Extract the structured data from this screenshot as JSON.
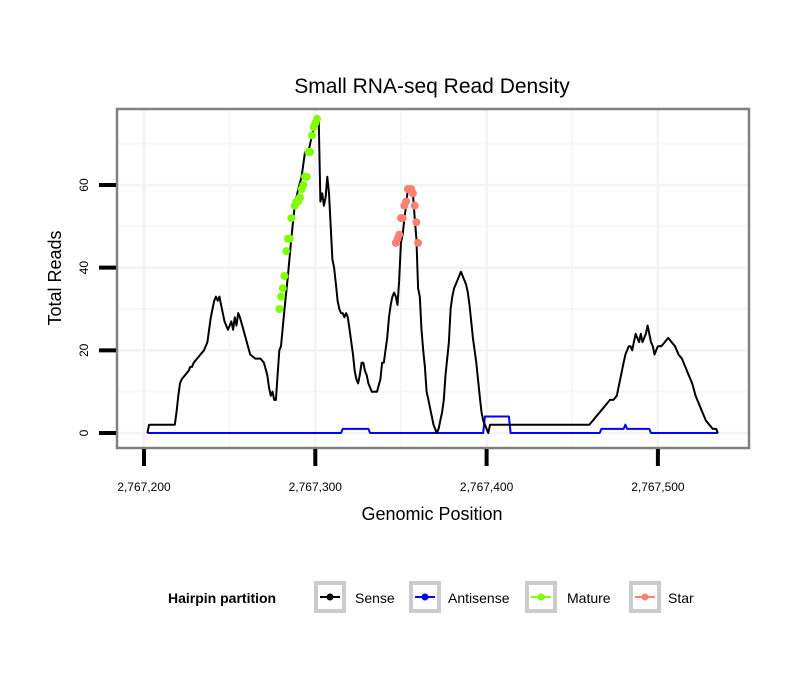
{
  "chart_data": {
    "type": "line",
    "title": "Small RNA-seq Read Density",
    "xlabel": "Genomic Position",
    "ylabel": "Total Reads",
    "xlim": [
      2767198,
      2767538
    ],
    "ylim": [
      -3,
      78
    ],
    "x_ticks": [
      {
        "value": 2767200,
        "label": "2,767,200"
      },
      {
        "value": 2767300,
        "label": "2,767,300"
      },
      {
        "value": 2767400,
        "label": "2,767,400"
      },
      {
        "value": 2767500,
        "label": "2,767,500"
      }
    ],
    "y_ticks": [
      {
        "value": 0,
        "label": "0"
      },
      {
        "value": 20,
        "label": "20"
      },
      {
        "value": 40,
        "label": "40"
      },
      {
        "value": 60,
        "label": "60"
      }
    ],
    "grid": true,
    "legend": {
      "title": "Hairpin partition",
      "position": "bottom",
      "entries": [
        {
          "name": "Sense",
          "color": "#000000"
        },
        {
          "name": "Antisense",
          "color": "#0000ff"
        },
        {
          "name": "Mature",
          "color": "#7fff00"
        },
        {
          "name": "Star",
          "color": "#fa8072"
        }
      ]
    },
    "series": [
      {
        "name": "Sense",
        "color": "#000000",
        "style": "line",
        "x": [
          2767202,
          2767203,
          2767218,
          2767219,
          2767220,
          2767221,
          2767222,
          2767224,
          2767226,
          2767227,
          2767228,
          2767229,
          2767231,
          2767233,
          2767235,
          2767236,
          2767237,
          2767238,
          2767239,
          2767240,
          2767241,
          2767242,
          2767243,
          2767244,
          2767245,
          2767246,
          2767247,
          2767248,
          2767249,
          2767250,
          2767251,
          2767252,
          2767253,
          2767254,
          2767255,
          2767256,
          2767258,
          2767260,
          2767262,
          2767265,
          2767268,
          2767270,
          2767272,
          2767273,
          2767274,
          2767275,
          2767276,
          2767277,
          2767278,
          2767279,
          2767280,
          2767282,
          2767284,
          2767286,
          2767288,
          2767290,
          2767292,
          2767294,
          2767296,
          2767298,
          2767300,
          2767301,
          2767302,
          2767303,
          2767304,
          2767305,
          2767306,
          2767307,
          2767308,
          2767309,
          2767310,
          2767311,
          2767312,
          2767313,
          2767314,
          2767315,
          2767316,
          2767317,
          2767318,
          2767319,
          2767320,
          2767321,
          2767322,
          2767323,
          2767324,
          2767325,
          2767326,
          2767327,
          2767328,
          2767329,
          2767330,
          2767331,
          2767332,
          2767333,
          2767334,
          2767336,
          2767338,
          2767339,
          2767340,
          2767341,
          2767342,
          2767343,
          2767344,
          2767345,
          2767346,
          2767347,
          2767348,
          2767349,
          2767350,
          2767351,
          2767352,
          2767353,
          2767354,
          2767355,
          2767356,
          2767357,
          2767358,
          2767359,
          2767360,
          2767361,
          2767362,
          2767363,
          2767364,
          2767365,
          2767366,
          2767367,
          2767368,
          2767369,
          2767370,
          2767371,
          2767372,
          2767373,
          2767374,
          2767375,
          2767376,
          2767377,
          2767378,
          2767379,
          2767380,
          2767381,
          2767382,
          2767383,
          2767384,
          2767385,
          2767386,
          2767387,
          2767388,
          2767389,
          2767390,
          2767391,
          2767392,
          2767393,
          2767394,
          2767395,
          2767396,
          2767397,
          2767398,
          2767399,
          2767400,
          2767401,
          2767402,
          2767403,
          2767404,
          2767405,
          2767406,
          2767407,
          2767408,
          2767409,
          2767410,
          2767411,
          2767412,
          2767413,
          2767414,
          2767415,
          2767416,
          2767417,
          2767418,
          2767419,
          2767420,
          2767421,
          2767422,
          2767423,
          2767424,
          2767425,
          2767426,
          2767427,
          2767428,
          2767429,
          2767430,
          2767431,
          2767432,
          2767433,
          2767434,
          2767435,
          2767436,
          2767437,
          2767438,
          2767439,
          2767440,
          2767452,
          2767454,
          2767456,
          2767458,
          2767460,
          2767462,
          2767464,
          2767466,
          2767468,
          2767470,
          2767472,
          2767474,
          2767476,
          2767477,
          2767478,
          2767479,
          2767480,
          2767481,
          2767482,
          2767483,
          2767484,
          2767485,
          2767486,
          2767487,
          2767488,
          2767489,
          2767490,
          2767491,
          2767492,
          2767493,
          2767494,
          2767495,
          2767496,
          2767497,
          2767498,
          2767499,
          2767500,
          2767502,
          2767504,
          2767506,
          2767508,
          2767510,
          2767512,
          2767514,
          2767516,
          2767518,
          2767520,
          2767522,
          2767524,
          2767526,
          2767528,
          2767530,
          2767532,
          2767534,
          2767535
        ],
        "y": [
          0,
          2,
          2,
          5,
          9,
          12,
          13,
          14,
          15,
          16,
          16,
          17,
          18,
          19,
          20,
          21,
          22,
          25,
          28,
          30,
          32,
          33,
          32,
          33,
          31,
          29,
          27,
          26,
          25,
          26,
          27,
          25,
          28,
          26,
          29,
          28,
          25,
          22,
          19,
          18,
          18,
          17,
          14,
          11,
          9,
          10,
          8,
          8,
          14,
          20,
          21,
          30,
          38,
          47,
          55,
          59,
          62,
          68,
          68,
          72,
          75,
          76,
          76,
          56,
          58,
          55,
          57,
          62,
          58,
          50,
          42,
          40,
          36,
          32,
          30,
          29,
          29,
          28,
          29,
          28,
          25,
          22,
          19,
          15,
          13,
          12,
          14,
          17,
          17,
          15,
          14,
          12,
          11,
          10,
          10,
          10,
          13,
          17,
          17,
          20,
          23,
          28,
          31,
          33,
          34,
          33,
          31,
          37,
          46,
          48,
          52,
          55,
          59,
          59,
          59,
          58,
          52,
          47,
          35,
          33,
          25,
          20,
          16,
          10,
          8,
          6,
          4,
          2,
          1,
          0,
          1,
          3,
          5,
          8,
          14,
          18,
          22,
          30,
          33,
          35,
          36,
          37,
          38,
          39,
          38,
          37,
          36,
          34,
          31,
          27,
          23,
          20,
          17,
          13,
          9,
          5,
          3,
          2,
          1,
          0,
          2,
          2,
          2,
          2,
          2,
          2,
          2,
          2,
          2,
          2,
          2,
          2,
          2,
          2,
          2,
          2,
          2,
          2,
          2,
          2,
          2,
          2,
          2,
          2,
          2,
          2,
          2,
          2,
          2,
          2,
          2,
          2,
          2,
          2,
          2,
          2,
          2,
          2,
          2,
          2,
          2,
          2,
          2,
          2,
          3,
          4,
          5,
          6,
          7,
          8,
          8,
          9,
          11,
          13,
          15,
          17,
          19,
          20,
          21,
          21,
          20,
          22,
          24,
          23,
          22,
          24,
          22,
          23,
          24,
          26,
          24,
          22,
          21,
          19,
          20,
          21,
          21,
          22,
          23,
          22,
          21,
          19,
          18,
          16,
          14,
          12,
          9,
          7,
          5,
          3,
          2,
          1,
          1,
          0
        ]
      },
      {
        "name": "Antisense",
        "color": "#0000ff",
        "style": "line",
        "x": [
          2767202,
          2767315,
          2767316,
          2767331,
          2767332,
          2767398,
          2767399,
          2767413,
          2767414,
          2767466,
          2767467,
          2767480,
          2767481,
          2767482,
          2767495,
          2767496,
          2767535
        ],
        "y": [
          0,
          0,
          1,
          1,
          0,
          0,
          4,
          4,
          0,
          0,
          1,
          1,
          2,
          1,
          1,
          0,
          0
        ]
      },
      {
        "name": "Mature",
        "color": "#7fff00",
        "style": "points",
        "x": [
          2767279,
          2767280,
          2767281,
          2767282,
          2767283,
          2767284,
          2767285,
          2767286,
          2767288,
          2767289,
          2767290,
          2767291,
          2767292,
          2767293,
          2767294,
          2767295,
          2767296,
          2767297,
          2767298,
          2767299,
          2767300,
          2767301
        ],
        "y": [
          30,
          33,
          35,
          38,
          44,
          47,
          47,
          52,
          55,
          56,
          56,
          57,
          59,
          60,
          62,
          62,
          68,
          68,
          72,
          74,
          75,
          76
        ]
      },
      {
        "name": "Star",
        "color": "#fa8072",
        "style": "points",
        "x": [
          2767347,
          2767348,
          2767349,
          2767350,
          2767351,
          2767352,
          2767353,
          2767354,
          2767355,
          2767356,
          2767357,
          2767358,
          2767359,
          2767360
        ],
        "y": [
          46,
          47,
          48,
          52,
          52,
          55,
          56,
          59,
          59,
          59,
          58,
          55,
          51,
          46
        ]
      }
    ]
  }
}
